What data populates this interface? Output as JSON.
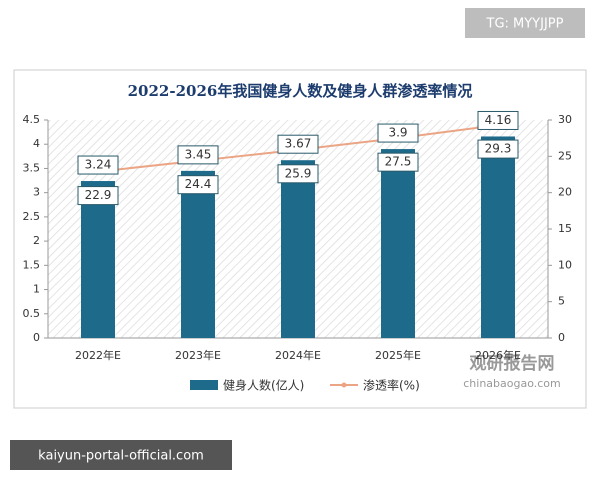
{
  "chart_data": {
    "type": "bar",
    "title": "2022-2026年我国健身人数及健身人群渗透率情况",
    "categories": [
      "2022年E",
      "2023年E",
      "2024年E",
      "2025年E",
      "2026年E"
    ],
    "series": [
      {
        "name": "健身人数(亿人)",
        "type": "bar",
        "color": "#1d6a8b",
        "values": [
          3.24,
          3.45,
          3.67,
          3.9,
          4.16
        ]
      },
      {
        "name": "渗透率(%)",
        "type": "line",
        "axis": "y2",
        "color": "#eba585",
        "values": [
          22.9,
          24.4,
          25.9,
          27.5,
          29.3
        ]
      }
    ],
    "ylim": [
      0,
      4.5
    ],
    "yticks": [
      0,
      0.5,
      1,
      1.5,
      2,
      2.5,
      3,
      3.5,
      4,
      4.5
    ],
    "y2lim": [
      0,
      30
    ],
    "y2ticks": [
      0,
      5,
      10,
      15,
      20,
      25,
      30
    ],
    "legend": "bottom"
  },
  "watermarks": {
    "top": "TG: MYYJJPP",
    "bottom": "kaiyun-portal-official.com",
    "logo": "观研报告网",
    "logo_url": "chinabaogao.com"
  }
}
